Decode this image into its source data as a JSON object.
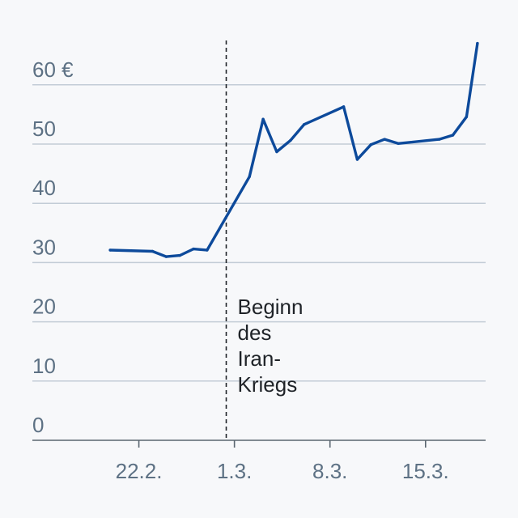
{
  "chart_data": {
    "type": "line",
    "y_unit_label": "60 €",
    "ylim": [
      0,
      66
    ],
    "y_ticks": [
      {
        "value": 0,
        "label": "0"
      },
      {
        "value": 10,
        "label": "10"
      },
      {
        "value": 20,
        "label": "20"
      },
      {
        "value": 30,
        "label": "30"
      },
      {
        "value": 40,
        "label": "40"
      },
      {
        "value": 50,
        "label": "50"
      },
      {
        "value": 60,
        "label": "60 €"
      }
    ],
    "x_ticks": [
      {
        "day": 22,
        "label": "22.2."
      },
      {
        "day": 29,
        "label": "1.3."
      },
      {
        "day": 36,
        "label": "8.3."
      },
      {
        "day": 43,
        "label": "15.3."
      }
    ],
    "xlim": [
      14.2,
      47.4
    ],
    "series": [
      {
        "color": "#0d4a9b",
        "points": [
          {
            "day": 19.9,
            "value": 32.1
          },
          {
            "day": 23.0,
            "value": 31.9
          },
          {
            "day": 24.0,
            "value": 31.0
          },
          {
            "day": 25.0,
            "value": 31.2
          },
          {
            "day": 26.0,
            "value": 32.3
          },
          {
            "day": 27.0,
            "value": 32.1
          },
          {
            "day": 30.1,
            "value": 44.5
          },
          {
            "day": 31.1,
            "value": 54.2
          },
          {
            "day": 32.1,
            "value": 48.7
          },
          {
            "day": 33.1,
            "value": 50.6
          },
          {
            "day": 34.1,
            "value": 53.3
          },
          {
            "day": 37.0,
            "value": 56.3
          },
          {
            "day": 38.0,
            "value": 47.4
          },
          {
            "day": 39.0,
            "value": 49.9
          },
          {
            "day": 40.0,
            "value": 50.8
          },
          {
            "day": 41.0,
            "value": 50.1
          },
          {
            "day": 44.0,
            "value": 50.8
          },
          {
            "day": 45.0,
            "value": 51.5
          },
          {
            "day": 46.0,
            "value": 54.6
          },
          {
            "day": 46.8,
            "value": 67.0
          }
        ]
      }
    ],
    "annotations": [
      {
        "day": 28.4,
        "lines": [
          "Beginn",
          "des",
          "Iran-",
          "Kriegs"
        ]
      }
    ],
    "grid": true
  }
}
